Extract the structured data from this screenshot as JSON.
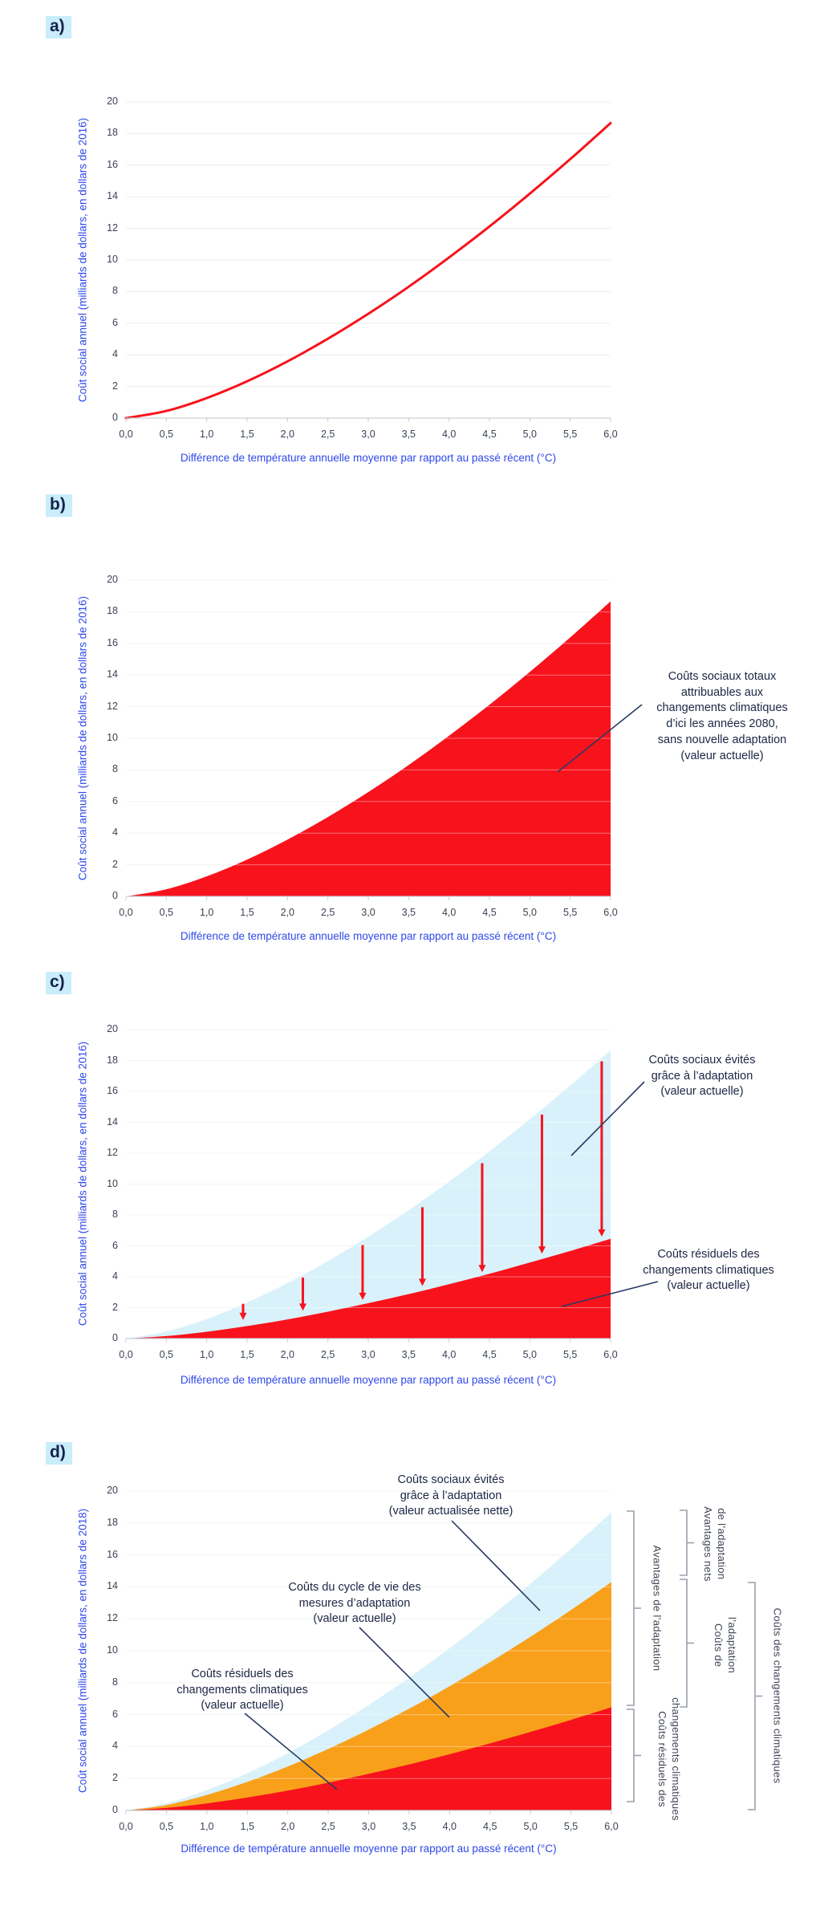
{
  "colors": {
    "red": "#F8121C",
    "light_blue": "#D9F1FA",
    "orange": "#F9A01B",
    "axis_label_blue": "#2F48EA",
    "annotation_navy": "#1B2544",
    "leader_line": "#2B3A64",
    "grid": "#ECEDEE",
    "axis_line": "#C9CFD8",
    "bracket_gray": "#9AA1AD",
    "panel_chip_bg": "#C9EDFB",
    "tick_text": "#3A4254"
  },
  "axis": {
    "x_label": "Différence de température annuelle moyenne par rapport au passé récent (°C)",
    "y_label_2016": "Coût social annuel (milliards de dollars, en dollars de 2016)",
    "y_label_2018": "Coût social annuel (milliards de dollars, en dollars de 2018)",
    "x_ticks": [
      "0,0",
      "0,5",
      "1,0",
      "1,5",
      "2,0",
      "2,5",
      "3,0",
      "3,5",
      "4,0",
      "4,5",
      "5,0",
      "5,5",
      "6,0"
    ],
    "y_ticks": [
      "0",
      "2",
      "4",
      "6",
      "8",
      "10",
      "12",
      "14",
      "16",
      "18",
      "20"
    ],
    "x_range": [
      0,
      6
    ],
    "y_range": [
      0,
      20
    ]
  },
  "chart_data": {
    "type": "area",
    "x": [
      0,
      0.5,
      1.0,
      1.5,
      2.0,
      2.5,
      3.0,
      3.5,
      4.0,
      4.5,
      5.0,
      5.5,
      6.0
    ],
    "series": [
      {
        "name": "couts_sociaux_totaux_sans_adaptation",
        "values": [
          0,
          0.45,
          1.27,
          2.33,
          3.59,
          5.02,
          6.6,
          8.31,
          10.16,
          12.12,
          14.2,
          16.38,
          18.66
        ]
      },
      {
        "name": "couts_residuels_des_changements_climatiques",
        "values": [
          0,
          0.16,
          0.44,
          0.81,
          1.24,
          1.74,
          2.29,
          2.88,
          3.52,
          4.2,
          4.92,
          5.67,
          6.46
        ]
      },
      {
        "name": "couts_residuels_plus_couts_adaptation",
        "values": [
          0,
          0.34,
          0.97,
          1.79,
          2.75,
          3.85,
          5.06,
          6.37,
          7.78,
          9.29,
          10.88,
          12.55,
          14.3
        ]
      }
    ],
    "avoided_cost_arrows_panel_c": [
      {
        "x": 1.45,
        "y_top": 2.25,
        "y_bottom": 1.2
      },
      {
        "x": 2.19,
        "y_top": 3.95,
        "y_bottom": 1.8
      },
      {
        "x": 2.93,
        "y_top": 6.05,
        "y_bottom": 2.5
      },
      {
        "x": 3.67,
        "y_top": 8.5,
        "y_bottom": 3.4
      },
      {
        "x": 4.41,
        "y_top": 11.35,
        "y_bottom": 4.3
      },
      {
        "x": 5.15,
        "y_top": 14.5,
        "y_bottom": 5.5
      },
      {
        "x": 5.89,
        "y_top": 17.95,
        "y_bottom": 6.6
      }
    ]
  },
  "panels": [
    {
      "label": "a)",
      "annotations": []
    },
    {
      "label": "b)",
      "annotations": [
        "Coûts sociaux totaux\nattribuables aux\nchangements climatiques\nd’ici les années 2080,\nsans nouvelle adaptation\n(valeur actuelle)"
      ]
    },
    {
      "label": "c)",
      "annotations": [
        "Coûts sociaux évités\ngrâce à l’adaptation\n(valeur actuelle)",
        "Coûts résiduels des\nchangements climatiques\n(valeur actuelle)"
      ]
    },
    {
      "label": "d)",
      "annotations": [
        "Coûts sociaux évités\ngrâce à l’adaptation\n(valeur actualisée nette)",
        "Coûts du cycle de vie des\nmesures d’adaptation\n(valeur actuelle)",
        "Coûts résiduels des\nchangements climatiques\n(valeur actuelle)"
      ],
      "bracket_labels": [
        "Avantages de l’adaptation",
        "Coûts résiduels des\nchangements climatiques",
        "Avantages nets\nde l’adaptation",
        "Coûts de\nl’adaptation",
        "Coûts des changements climatiques"
      ]
    }
  ]
}
